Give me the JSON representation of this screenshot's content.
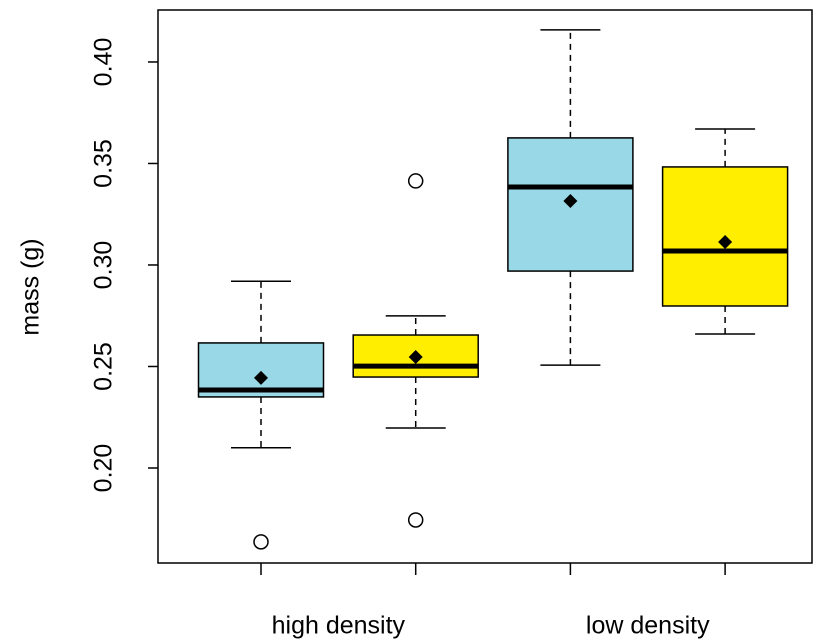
{
  "chart_data": {
    "type": "box",
    "ylabel": "mass (g)",
    "groups": [
      "high density",
      "low density"
    ],
    "boxes": [
      {
        "color": "#99d8e6",
        "whisker_low": 0.21,
        "q1": 0.235,
        "median": 0.2384,
        "q3": 0.2616,
        "whisker_high": 0.292,
        "mean": 0.2444,
        "outliers": [
          0.1636
        ]
      },
      {
        "color": "#ffee00",
        "whisker_low": 0.2197,
        "q1": 0.2448,
        "median": 0.2502,
        "q3": 0.2655,
        "whisker_high": 0.2749,
        "mean": 0.2547,
        "outliers": [
          0.3414,
          0.1744
        ]
      },
      {
        "color": "#99d8e6",
        "whisker_low": 0.2507,
        "q1": 0.297,
        "median": 0.3384,
        "q3": 0.3626,
        "whisker_high": 0.4158,
        "mean": 0.3315,
        "outliers": []
      },
      {
        "color": "#ffee00",
        "whisker_low": 0.266,
        "q1": 0.2798,
        "median": 0.3069,
        "q3": 0.3483,
        "whisker_high": 0.367,
        "mean": 0.3113,
        "outliers": []
      }
    ],
    "ylim": [
      0.1532,
      0.4256
    ],
    "yticks": [
      {
        "value": 0.2,
        "label": "0.20"
      },
      {
        "value": 0.25,
        "label": "0.25"
      },
      {
        "value": 0.3,
        "label": "0.30"
      },
      {
        "value": 0.35,
        "label": "0.35"
      },
      {
        "value": 0.4,
        "label": "0.40"
      }
    ]
  }
}
